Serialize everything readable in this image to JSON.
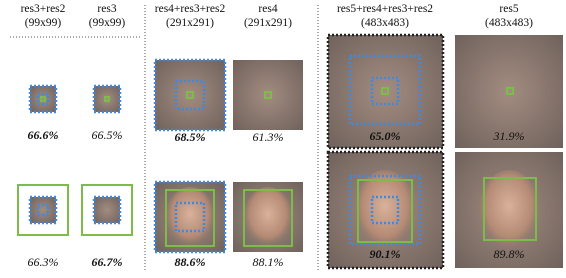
{
  "columns": [
    {
      "title": "res3+res2",
      "size": "(99x99)"
    },
    {
      "title": "res3",
      "size": "(99x99)"
    },
    {
      "title": "res4+res3+res2",
      "size": "(291x291)"
    },
    {
      "title": "res4",
      "size": "(291x291)"
    },
    {
      "title": "res5+res4+res3+res2",
      "size": "(483x483)"
    },
    {
      "title": "res5",
      "size": "(483x483)"
    }
  ],
  "rows": [
    [
      "66.6%",
      "66.5%",
      "68.5%",
      "61.3%",
      "65.0%",
      "31.9%"
    ],
    [
      "66.3%",
      "66.7%",
      "88.6%",
      "88.1%",
      "90.1%",
      "89.8%"
    ]
  ]
}
